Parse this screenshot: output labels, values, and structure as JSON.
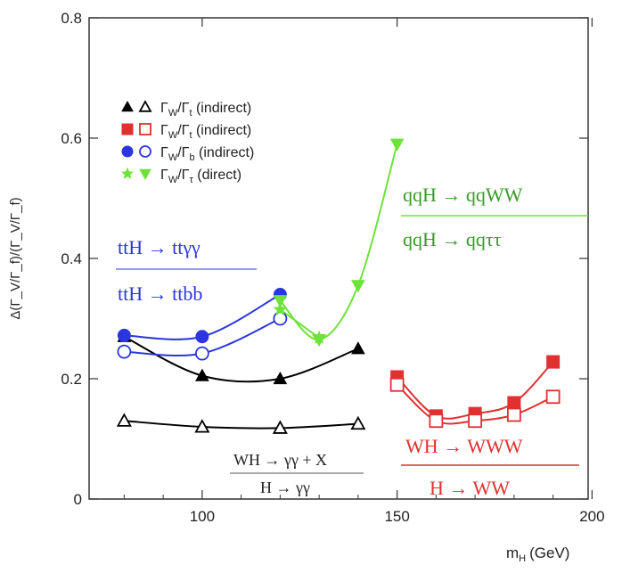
{
  "chart_data": {
    "type": "line",
    "xlabel": "m",
    "xlabel_sub": "H",
    "xlabel_unit": "(GeV)",
    "ylabel": "Δ(Γ",
    "ylabel_full": "Δ(Γ_V/Γ_f)/(Γ_V/Γ_f)",
    "xlim": [
      71,
      199
    ],
    "ylim": [
      0,
      0.8
    ],
    "xticks": [
      100,
      150,
      200
    ],
    "yticks": [
      0,
      0.2,
      0.4,
      0.6,
      0.8
    ],
    "ytick_labels": [
      "0",
      "0.2",
      "0.4",
      "0.6",
      "0.8"
    ],
    "grid": false,
    "legend_position": "top-left",
    "legend": [
      {
        "label": "Γ_W/Γ_t (indirect)",
        "main": "Γ",
        "sub1": "W",
        "mid": "/Γ",
        "sub2": "t",
        "tail": " (indirect)",
        "color": "#000000",
        "markers": [
          "filled-triangle",
          "open-triangle"
        ]
      },
      {
        "label": "Γ_W/Γ_t (indirect)",
        "main": "Γ",
        "sub1": "W",
        "mid": "/Γ",
        "sub2": "t",
        "tail": " (indirect)",
        "color": "#e03030",
        "markers": [
          "filled-square",
          "open-square"
        ]
      },
      {
        "label": "Γ_W/Γ_b (indirect)",
        "main": "Γ",
        "sub1": "W",
        "mid": "/Γ",
        "sub2": "b",
        "tail": " (indirect)",
        "color": "#2b35e0",
        "markers": [
          "filled-circle",
          "open-circle"
        ]
      },
      {
        "label": "Γ_W/Γ_τ (direct)",
        "main": "Γ",
        "sub1": "W",
        "mid": "/Γ",
        "sub2": "τ",
        "tail": " (direct)",
        "color": "#6ee23a",
        "markers": [
          "filled-star",
          "filled-triangle-down"
        ]
      }
    ],
    "series": [
      {
        "color": "#000000",
        "marker": "filled-triangle",
        "x": [
          80,
          100,
          120,
          140
        ],
        "y": [
          0.27,
          0.205,
          0.2,
          0.25
        ]
      },
      {
        "color": "#000000",
        "marker": "open-triangle",
        "x": [
          80,
          100,
          120,
          140
        ],
        "y": [
          0.13,
          0.12,
          0.118,
          0.125
        ]
      },
      {
        "color": "#2b35e0",
        "marker": "filled-circle",
        "x": [
          80,
          100,
          120
        ],
        "y": [
          0.272,
          0.27,
          0.34
        ]
      },
      {
        "color": "#2b35e0",
        "marker": "open-circle",
        "x": [
          80,
          100,
          120
        ],
        "y": [
          0.245,
          0.242,
          0.3
        ]
      },
      {
        "color": "#6ee23a",
        "marker": "filled-triangle-down",
        "x": [
          120,
          130,
          140,
          150
        ],
        "y": [
          0.33,
          0.265,
          0.355,
          0.59
        ]
      },
      {
        "color": "#6ee23a",
        "marker": "filled-star",
        "x": [
          120,
          130
        ],
        "y": [
          0.315,
          0.268
        ]
      },
      {
        "color": "#e03030",
        "marker": "filled-square",
        "x": [
          150,
          160,
          170,
          180,
          190
        ],
        "y": [
          0.203,
          0.138,
          0.142,
          0.16,
          0.228
        ]
      },
      {
        "color": "#e03030",
        "marker": "open-square",
        "x": [
          150,
          160,
          170,
          180,
          190
        ],
        "y": [
          0.19,
          0.13,
          0.13,
          0.14,
          0.17
        ]
      }
    ],
    "annotations": [
      {
        "id": "tth",
        "color": "#2b35e0",
        "numerator": "ttH → ttγγ",
        "denominator": "ttH → ttbb"
      },
      {
        "id": "qqh",
        "color": "#3a9a2a",
        "numerator": "qqH → qqWW",
        "denominator": "qqH → qqττ"
      },
      {
        "id": "wh",
        "color": "#222222",
        "numerator": "WH → γγ + X",
        "denominator": "H → γγ"
      },
      {
        "id": "hww",
        "color": "#e03030",
        "numerator": "WH → WWW",
        "denominator": "H → WW"
      }
    ]
  }
}
